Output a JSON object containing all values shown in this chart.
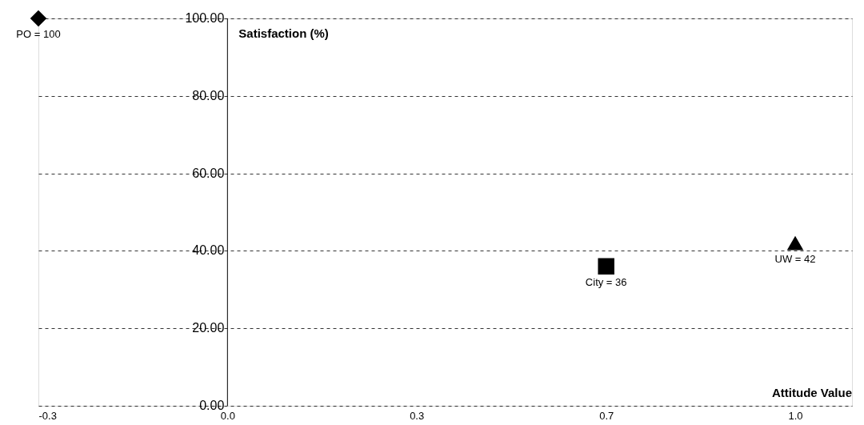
{
  "chart_data": {
    "type": "scatter",
    "xlabel": "Attitude Value",
    "ylabel": "Satisfaction (%)",
    "xlim": [
      -0.333,
      1.1
    ],
    "xticks": [
      {
        "value": -0.333,
        "label": "-0.3"
      },
      {
        "value": 0,
        "label": "0.0"
      },
      {
        "value": 0.333,
        "label": "0.3"
      },
      {
        "value": 0.667,
        "label": "0.7"
      },
      {
        "value": 1,
        "label": "1.0"
      }
    ],
    "ylim": [
      0,
      100
    ],
    "yticks": [
      {
        "value": 0,
        "label": "0.00"
      },
      {
        "value": 20,
        "label": "20.00"
      },
      {
        "value": 40,
        "label": "40.00"
      },
      {
        "value": 60,
        "label": "60.00"
      },
      {
        "value": 80,
        "label": "80.00"
      },
      {
        "value": 100,
        "label": "100.00"
      }
    ],
    "grid": "y",
    "series": [
      {
        "color": "#000000",
        "marker": "diamond",
        "x": [
          -0.333
        ],
        "values": [
          100
        ],
        "value_labels": [
          "PO = 100"
        ]
      },
      {
        "color": "#000000",
        "marker": "square",
        "x": [
          0.667
        ],
        "values": [
          36
        ],
        "value_labels": [
          "City = 36"
        ]
      },
      {
        "color": "#000000",
        "marker": "triangle",
        "x": [
          1
        ],
        "values": [
          42
        ],
        "value_labels": [
          "UW = 42"
        ]
      }
    ]
  }
}
